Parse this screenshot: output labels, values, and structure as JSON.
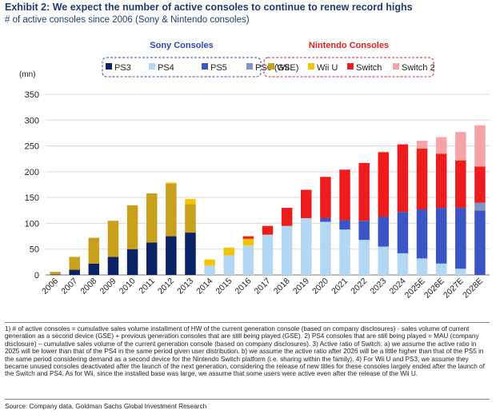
{
  "header": {
    "title": "Exhibit 2: We expect the number of active consoles to continue to renew record highs",
    "subtitle": "# of active consoles since 2006 (Sony & Nintendo consoles)"
  },
  "footer": {
    "notes": "1) # of active consoles = cumulative sales volume installment of HW of the current generation console (based on company disclosures) - sales volume of current generation as a second device (GSE) + previous generation consoles that are still being played (GSE). 2) PS4 consoles that are still being played = MAU (company disclosure) – cumulative sales volume of the current generation console (based on company disclosures). 3) Active ratio of Switch: a) we assume the active ratio in 2025 will be lower than that of the PS4 in the same period given user distribution. b) we assume the active ratio after 2026 will be a little higher than that of the PS5 in the same period considering demand as a second device for the Nintendo Switch platform (i.e. sharing within the family). 4) For Wii U and PS3, we assume they became unused consoles deactivated after the launch of the next generation, considering the release of new titles for these consoles largely ended after the launch of the Switch and PS4. As for Wii, since the installed base was large, we assume that some users were active even after the release of the Wii U.",
    "source": "Source: Company data, Goldman Sachs Global Investment Research"
  },
  "chart_data": {
    "type": "bar",
    "stacked": true,
    "y_unit_label": "(mn)",
    "ylim": [
      0,
      350
    ],
    "yticks": [
      0,
      50,
      100,
      150,
      200,
      250,
      300,
      350
    ],
    "grid": true,
    "legend_groups": [
      {
        "title": "Sony Consoles",
        "color": "#2e47b8",
        "entries": [
          "PS3",
          "PS4",
          "PS5",
          "PS6 (GSE)"
        ]
      },
      {
        "title": "Nintendo Consoles",
        "color": "#e02020",
        "entries": [
          "Wii",
          "Wii U",
          "Switch",
          "Switch 2"
        ]
      }
    ],
    "categories": [
      "2006",
      "2007",
      "2008",
      "2009",
      "2010",
      "2011",
      "2012",
      "2013",
      "2014",
      "2015",
      "2016",
      "2017",
      "2018",
      "2019",
      "2020",
      "2021",
      "2022",
      "2023",
      "2024",
      "2025E",
      "2026E",
      "2027E",
      "2028E"
    ],
    "series": [
      {
        "name": "PS3",
        "color": "#0b2265",
        "values": [
          1,
          10,
          22,
          35,
          50,
          63,
          75,
          82,
          0,
          0,
          0,
          0,
          0,
          0,
          0,
          0,
          0,
          0,
          0,
          0,
          0,
          0,
          0
        ]
      },
      {
        "name": "PS4",
        "color": "#b3d6f3",
        "values": [
          0,
          0,
          0,
          0,
          0,
          0,
          0,
          0,
          18,
          38,
          57,
          78,
          95,
          110,
          103,
          88,
          68,
          55,
          42,
          32,
          22,
          12,
          0
        ]
      },
      {
        "name": "PS5",
        "color": "#3b55c4",
        "values": [
          0,
          0,
          0,
          0,
          0,
          0,
          0,
          0,
          0,
          0,
          0,
          0,
          0,
          0,
          7,
          18,
          37,
          58,
          80,
          95,
          108,
          118,
          125
        ]
      },
      {
        "name": "PS6 (GSE)",
        "color": "#8296c4",
        "values": [
          0,
          0,
          0,
          0,
          0,
          0,
          0,
          0,
          0,
          0,
          0,
          0,
          0,
          0,
          0,
          0,
          0,
          0,
          0,
          0,
          0,
          0,
          15
        ]
      },
      {
        "name": "Wii",
        "color": "#c9a01b",
        "values": [
          5,
          25,
          50,
          70,
          85,
          95,
          102,
          55,
          0,
          0,
          0,
          0,
          0,
          0,
          0,
          0,
          0,
          0,
          0,
          0,
          0,
          0,
          0
        ]
      },
      {
        "name": "Wii U",
        "color": "#f5c400",
        "values": [
          0,
          0,
          0,
          0,
          0,
          0,
          2,
          10,
          12,
          15,
          13,
          0,
          0,
          0,
          0,
          0,
          0,
          0,
          0,
          0,
          0,
          0,
          0
        ]
      },
      {
        "name": "Switch",
        "color": "#ee1c1c",
        "values": [
          0,
          0,
          0,
          0,
          0,
          0,
          0,
          0,
          0,
          0,
          5,
          17,
          35,
          55,
          80,
          98,
          112,
          125,
          131,
          118,
          105,
          92,
          70
        ]
      },
      {
        "name": "Switch 2",
        "color": "#f7a3a8",
        "values": [
          0,
          0,
          0,
          0,
          0,
          0,
          0,
          0,
          0,
          0,
          0,
          0,
          0,
          0,
          0,
          0,
          0,
          0,
          0,
          15,
          32,
          55,
          80
        ]
      }
    ]
  }
}
